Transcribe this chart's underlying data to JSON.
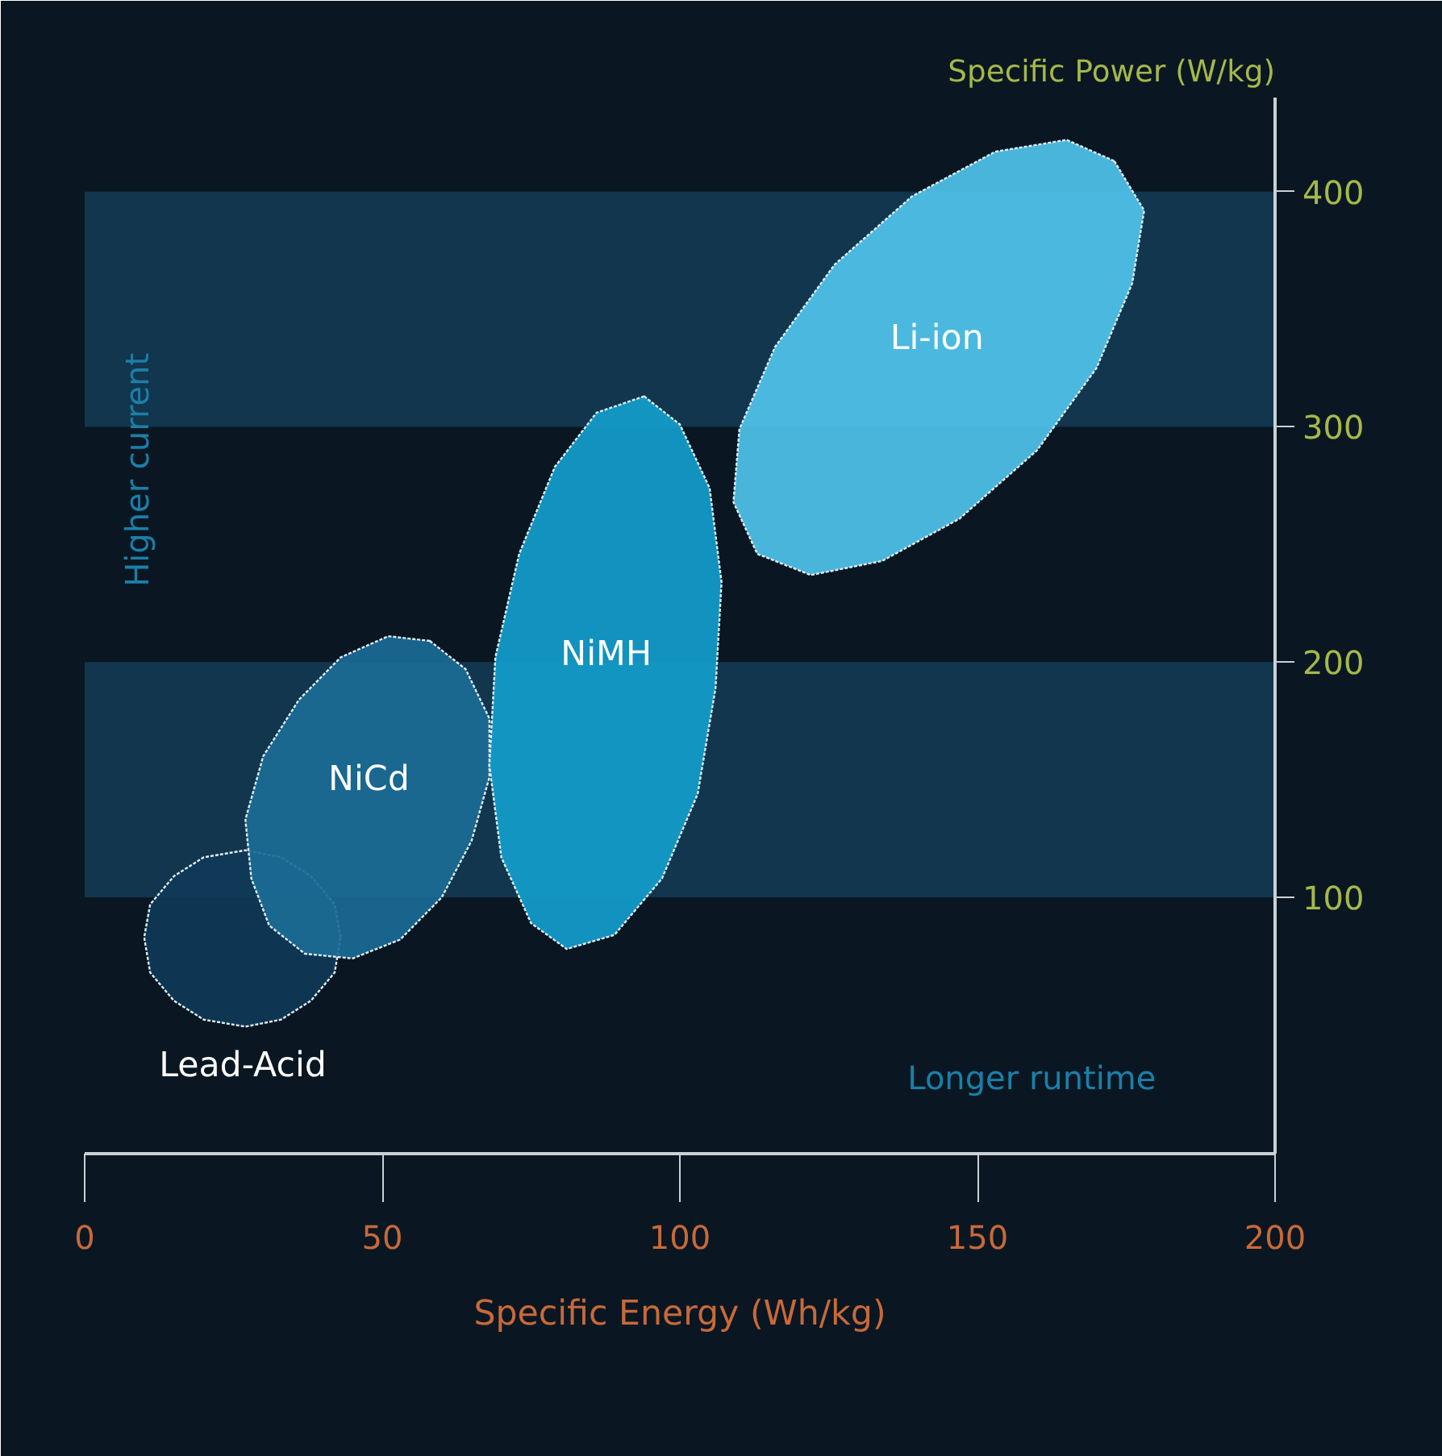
{
  "chart_data": {
    "type": "area",
    "xlabel": "Specific Energy (Wh/kg)",
    "ylabel": "Specific Power (W/kg)",
    "xlim": [
      0,
      200
    ],
    "ylim": [
      -9,
      440
    ],
    "xticks": [
      0,
      50,
      100,
      150,
      200
    ],
    "yticks": [
      100,
      200,
      300,
      400
    ],
    "grid": false,
    "bands": [
      {
        "axis": "y",
        "from": 100,
        "to": 200,
        "color": "#123a52"
      },
      {
        "axis": "y",
        "from": 300,
        "to": 400,
        "color": "#123a52"
      }
    ],
    "annotations": [
      "Higher current",
      "Longer runtime"
    ],
    "series": [
      {
        "name": "Lead-Acid",
        "color": "#0f3a58",
        "x": [
          43,
          42,
          38,
          33,
          27,
          20,
          15,
          11,
          10,
          11,
          15,
          20,
          27,
          33,
          38,
          42
        ],
        "values": [
          83,
          97,
          109,
          117,
          120,
          117,
          109,
          97,
          83,
          68,
          56,
          48,
          45,
          48,
          56,
          68
        ]
      },
      {
        "name": "NiCd",
        "color": "#1b6b96",
        "x": [
          58,
          64,
          68,
          68,
          65,
          60,
          53,
          45,
          37,
          31,
          28,
          27,
          30,
          36,
          43,
          51
        ],
        "values": [
          209,
          197,
          176,
          151,
          124,
          100,
          82,
          74,
          76,
          88,
          108,
          133,
          160,
          184,
          202,
          211
        ]
      },
      {
        "name": "NiMH",
        "color": "#139dcc",
        "x": [
          94,
          100,
          105,
          107,
          106,
          103,
          97,
          89,
          81,
          75,
          70,
          68,
          69,
          73,
          79,
          86
        ],
        "values": [
          313,
          301,
          274,
          234,
          189,
          144,
          108,
          84,
          78,
          89,
          117,
          156,
          202,
          246,
          283,
          306
        ]
      },
      {
        "name": "Li-ion",
        "color": "#4fc3ec",
        "x": [
          173,
          178,
          176,
          170,
          160,
          147,
          134,
          122,
          113,
          109,
          110,
          116,
          126,
          139,
          153,
          165
        ],
        "values": [
          413,
          392,
          361,
          325,
          290,
          261,
          243,
          237,
          246,
          268,
          299,
          334,
          369,
          398,
          417,
          422
        ]
      }
    ]
  }
}
